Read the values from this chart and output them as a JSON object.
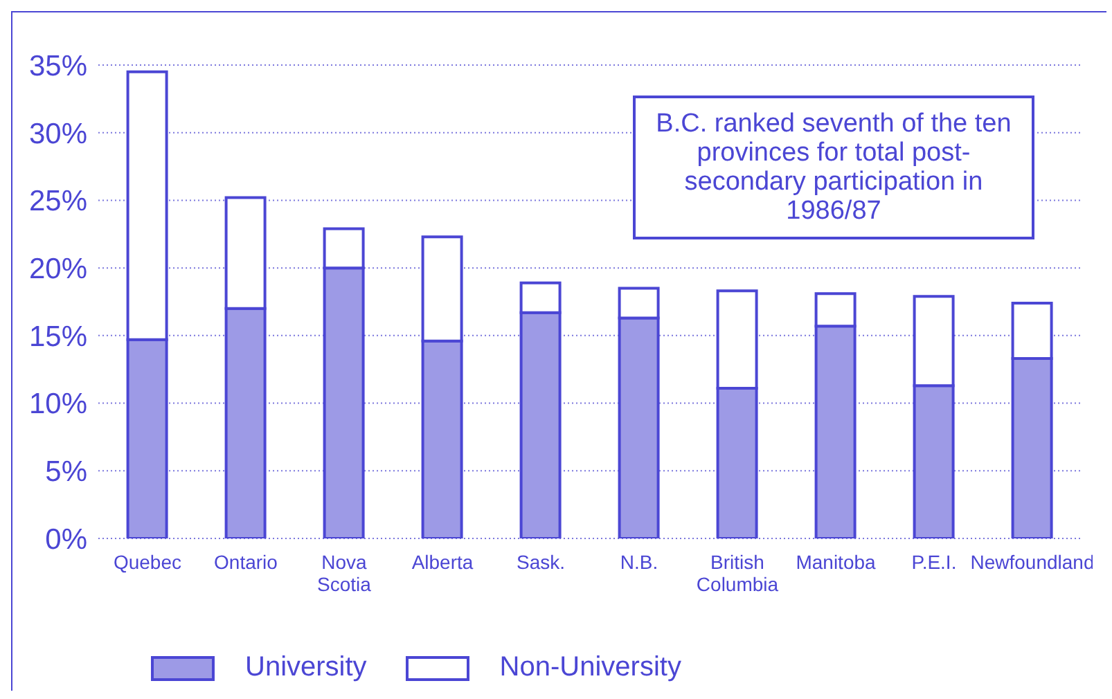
{
  "chart_data": {
    "type": "bar",
    "stacked": true,
    "categories": [
      "Quebec",
      "Ontario",
      "Nova Scotia",
      "Alberta",
      "Sask.",
      "N.B.",
      "British Columbia",
      "Manitoba",
      "P.E.I.",
      "Newfoundland"
    ],
    "series": [
      {
        "name": "University",
        "color": "#9d9ae6",
        "values": [
          14.7,
          17.0,
          20.0,
          14.6,
          16.7,
          16.3,
          11.1,
          15.7,
          11.3,
          13.3
        ]
      },
      {
        "name": "Non-University",
        "color": "#ffffff",
        "values": [
          19.8,
          8.2,
          2.9,
          7.7,
          2.2,
          2.2,
          7.2,
          2.4,
          6.6,
          4.1
        ]
      }
    ],
    "ylim": [
      0,
      35
    ],
    "yticks": [
      {
        "value": 0,
        "label": "0%"
      },
      {
        "value": 5,
        "label": "5%"
      },
      {
        "value": 10,
        "label": "10%"
      },
      {
        "value": 15,
        "label": "15%"
      },
      {
        "value": 20,
        "label": "20%"
      },
      {
        "value": 25,
        "label": "25%"
      },
      {
        "value": 30,
        "label": "30%"
      },
      {
        "value": 35,
        "label": "35%"
      }
    ],
    "grid": "y",
    "legend": "bottom",
    "annotations": [
      "B.C. ranked seventh of the ten provinces for total post-secondary participation in 1986/87"
    ]
  }
}
